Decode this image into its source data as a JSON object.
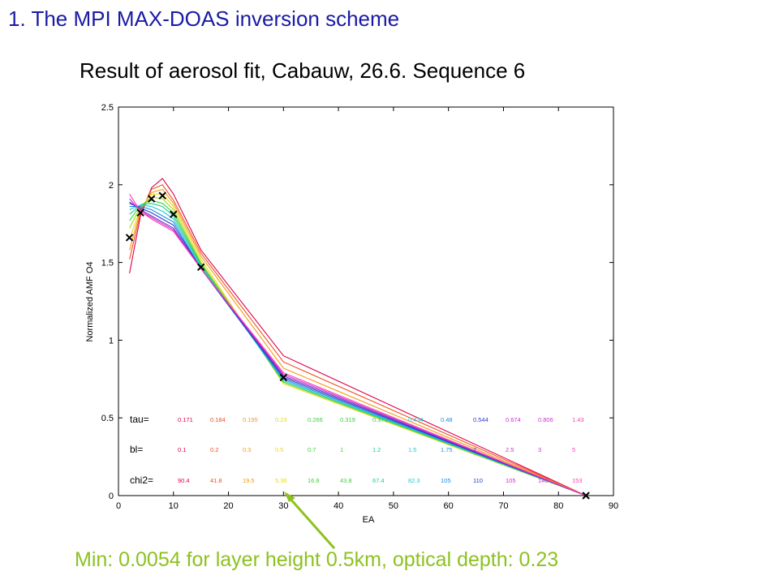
{
  "slide": {
    "title": "1. The MPI MAX-DOAS inversion scheme",
    "caption": "Min: 0.0054  for layer height 0.5km, optical depth: 0.23"
  },
  "chart_data": {
    "type": "line",
    "title": "Result of aerosol fit, Cabauw, 26.6. Sequence 6",
    "xlabel": "EA",
    "ylabel": "Normalized AMF O4",
    "xlim": [
      0,
      90
    ],
    "ylim": [
      0,
      2.5
    ],
    "xticks": [
      "0",
      "10",
      "20",
      "30",
      "40",
      "50",
      "60",
      "70",
      "80",
      "90"
    ],
    "yticks": [
      "0",
      "0.5",
      "1",
      "1.5",
      "2",
      "2.5"
    ],
    "grid": false,
    "x": [
      2,
      4,
      6,
      8,
      10,
      15,
      30,
      85
    ],
    "measured": {
      "marker": "x",
      "x": [
        2,
        4,
        6,
        8,
        10,
        15,
        30,
        85
      ],
      "y": [
        1.66,
        1.82,
        1.91,
        1.93,
        1.81,
        1.47,
        0.76,
        0.0
      ]
    },
    "series": [
      {
        "color": "#e0004a",
        "values": [
          1.43,
          1.8,
          1.98,
          2.04,
          1.94,
          1.58,
          0.9,
          0.0
        ]
      },
      {
        "color": "#f0501e",
        "values": [
          1.52,
          1.82,
          1.97,
          2.0,
          1.9,
          1.56,
          0.86,
          0.0
        ]
      },
      {
        "color": "#f59a14",
        "values": [
          1.58,
          1.84,
          1.95,
          1.97,
          1.88,
          1.54,
          0.82,
          0.0
        ]
      },
      {
        "color": "#e8d81c",
        "values": [
          1.65,
          1.85,
          1.94,
          1.94,
          1.86,
          1.52,
          0.72,
          0.0
        ]
      },
      {
        "color": "#9ed81e",
        "values": [
          1.72,
          1.86,
          1.92,
          1.91,
          1.84,
          1.5,
          0.73,
          0.0
        ]
      },
      {
        "color": "#3cd23c",
        "values": [
          1.77,
          1.87,
          1.9,
          1.88,
          1.82,
          1.49,
          0.73,
          0.0
        ]
      },
      {
        "color": "#1ecb8c",
        "values": [
          1.81,
          1.87,
          1.88,
          1.86,
          1.8,
          1.48,
          0.74,
          0.0
        ]
      },
      {
        "color": "#1ecbd2",
        "values": [
          1.84,
          1.87,
          1.86,
          1.83,
          1.78,
          1.47,
          0.74,
          0.0
        ]
      },
      {
        "color": "#1e8ce6",
        "values": [
          1.86,
          1.86,
          1.84,
          1.8,
          1.76,
          1.46,
          0.75,
          0.0
        ]
      },
      {
        "color": "#2a3cc8",
        "values": [
          1.88,
          1.85,
          1.82,
          1.78,
          1.74,
          1.46,
          0.76,
          0.0
        ]
      },
      {
        "color": "#7828c8",
        "values": [
          1.89,
          1.84,
          1.8,
          1.76,
          1.72,
          1.46,
          0.77,
          0.0
        ]
      },
      {
        "color": "#c832d2",
        "values": [
          1.91,
          1.83,
          1.79,
          1.75,
          1.71,
          1.46,
          0.78,
          0.0
        ]
      },
      {
        "color": "#ff3cb4",
        "values": [
          1.94,
          1.83,
          1.78,
          1.74,
          1.7,
          1.46,
          0.79,
          0.0
        ]
      }
    ],
    "annotations": {
      "rows": [
        {
          "label": "tau=",
          "values": [
            "0.171",
            "0.184",
            "0.195",
            "0.23",
            "0.266",
            "0.319",
            "0.371",
            "0.434",
            "0.48",
            "0.544",
            "0.674",
            "0.806",
            "1.43"
          ]
        },
        {
          "label": "bl=",
          "values": [
            "0.1",
            "0.2",
            "0.3",
            "0.5",
            "0.7",
            "1",
            "1.2",
            "1.5",
            "1.75",
            "2",
            "2.5",
            "3",
            "5"
          ]
        },
        {
          "label": "chi2=",
          "values": [
            "90.4",
            "41.8",
            "19.5",
            "5.36",
            "16.8",
            "43.8",
            "67.4",
            "82.3",
            "105",
            "110",
            "105",
            "140",
            "153"
          ]
        }
      ],
      "colors": [
        "#e0004a",
        "#f0501e",
        "#f59a14",
        "#e8d81c",
        "#3cd23c",
        "#3cd23c",
        "#1ecb8c",
        "#1ecbd2",
        "#1e8ce6",
        "#2a3cc8",
        "#c832d2",
        "#c832d2",
        "#ff3cb4"
      ]
    },
    "arrow_color": "#8cc21f"
  }
}
